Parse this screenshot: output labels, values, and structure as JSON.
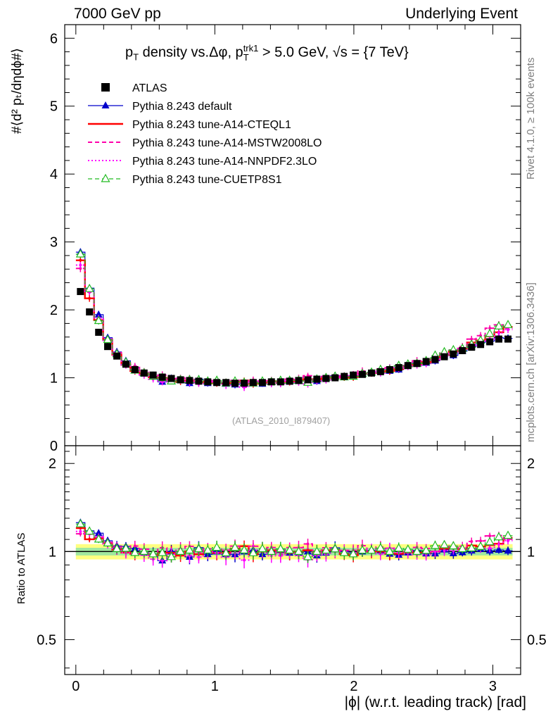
{
  "header": {
    "left": "7000 GeV pp",
    "right": "Underlying Event"
  },
  "side_labels": {
    "rivet": "Rivet 4.1.0, ≥ 100k events",
    "mcplots": "mcplots.cern.ch [arXiv:1306.3436]"
  },
  "watermark": "(ATLAS_2010_I879407)",
  "colors": {
    "atlas": "#000000",
    "default": "#0000cc",
    "a14_cteql1": "#ff0000",
    "a14_mstw": "#ff00aa",
    "a14_nnpdf": "#ff00ff",
    "cuetp8s1": "#22bb22",
    "band_inner": "#a0e8a0",
    "band_outer": "#ffff80"
  },
  "chart_data": {
    "type": "line",
    "title": "p_T density vs.Δφ, p_T^trk1 > 5.0 GeV, √s = {7 TeV}",
    "title_parts": {
      "pre": "p",
      "pre_sub": "T",
      "mid": " density vs.Δφ, p",
      "mid_sup": "trk1",
      "mid_sub": "T",
      "post": " > 5.0 GeV, √s = {7 TeV}"
    },
    "ylabel": "#⟨d² p_T/dηdφ#⟩",
    "ylabel_display": "#⟨d² pₜ/dηdϕ#⟩",
    "ratio_ylabel": "Ratio to ATLAS",
    "xlabel": "|ϕ| (w.r.t. leading track) [rad]",
    "xlim": [
      -0.08,
      3.2
    ],
    "ylim": [
      0,
      6.2
    ],
    "ratio_ylim": [
      0.38,
      2.3
    ],
    "xticks": [
      "0",
      "1",
      "2",
      "3"
    ],
    "yticks": [
      "0",
      "1",
      "2",
      "3",
      "4",
      "5",
      "6"
    ],
    "ratio_yticks": [
      "0.5",
      "1",
      "2"
    ],
    "legend": [
      {
        "key": "atlas",
        "label": "ATLAS",
        "style": "square"
      },
      {
        "key": "default",
        "label": "Pythia 8.243 default",
        "style": "line-triangle"
      },
      {
        "key": "a14_cteql1",
        "label": "Pythia 8.243 tune-A14-CTEQL1",
        "style": "solid"
      },
      {
        "key": "a14_mstw",
        "label": "Pythia 8.243 tune-A14-MSTW2008LO",
        "style": "dashed"
      },
      {
        "key": "a14_nnpdf",
        "label": "Pythia 8.243 tune-A14-NNPDF2.3LO",
        "style": "dotted"
      },
      {
        "key": "cuetp8s1",
        "label": "Pythia 8.243 tune-CUETP8S1",
        "style": "dash-open-triangle"
      }
    ],
    "x": [
      0.033,
      0.098,
      0.164,
      0.229,
      0.295,
      0.36,
      0.425,
      0.491,
      0.556,
      0.622,
      0.687,
      0.753,
      0.818,
      0.884,
      0.949,
      1.014,
      1.08,
      1.145,
      1.211,
      1.276,
      1.342,
      1.407,
      1.473,
      1.538,
      1.603,
      1.669,
      1.734,
      1.8,
      1.865,
      1.931,
      1.996,
      2.061,
      2.127,
      2.192,
      2.258,
      2.323,
      2.389,
      2.454,
      2.52,
      2.585,
      2.651,
      2.716,
      2.781,
      2.847,
      2.912,
      2.978,
      3.043,
      3.109
    ],
    "series": [
      {
        "name": "ATLAS",
        "key": "atlas",
        "values": [
          2.27,
          1.97,
          1.67,
          1.46,
          1.32,
          1.2,
          1.12,
          1.07,
          1.04,
          1.01,
          0.99,
          0.97,
          0.96,
          0.95,
          0.94,
          0.93,
          0.93,
          0.92,
          0.92,
          0.93,
          0.93,
          0.94,
          0.94,
          0.95,
          0.96,
          0.97,
          0.98,
          0.99,
          1.0,
          1.02,
          1.04,
          1.05,
          1.07,
          1.09,
          1.12,
          1.15,
          1.18,
          1.21,
          1.24,
          1.27,
          1.31,
          1.35,
          1.4,
          1.45,
          1.49,
          1.53,
          1.57,
          1.57
        ]
      },
      {
        "name": "Pythia 8.243 default",
        "key": "default",
        "values": [
          2.85,
          2.32,
          1.93,
          1.59,
          1.38,
          1.25,
          1.15,
          1.06,
          1.02,
          0.94,
          0.99,
          0.96,
          0.92,
          0.98,
          0.92,
          0.93,
          0.91,
          0.9,
          0.92,
          0.94,
          0.91,
          0.95,
          0.95,
          0.94,
          0.95,
          0.97,
          0.95,
          0.98,
          1.03,
          1.02,
          1.03,
          1.05,
          1.08,
          1.1,
          1.1,
          1.12,
          1.17,
          1.22,
          1.22,
          1.25,
          1.33,
          1.33,
          1.39,
          1.46,
          1.52,
          1.54,
          1.59,
          1.58
        ]
      },
      {
        "name": "Pythia 8.243 tune-A14-CTEQL1",
        "key": "a14_cteql1",
        "values": [
          2.73,
          2.17,
          1.85,
          1.56,
          1.34,
          1.19,
          1.1,
          1.05,
          1.01,
          1.0,
          0.98,
          0.94,
          0.96,
          0.93,
          0.94,
          0.92,
          0.92,
          0.94,
          0.96,
          0.91,
          0.93,
          0.95,
          0.94,
          0.94,
          0.96,
          0.98,
          0.98,
          1.0,
          1.01,
          1.0,
          1.01,
          1.06,
          1.07,
          1.09,
          1.1,
          1.13,
          1.17,
          1.2,
          1.23,
          1.27,
          1.34,
          1.39,
          1.43,
          1.52,
          1.55,
          1.61,
          1.67,
          1.75
        ]
      },
      {
        "name": "Pythia 8.243 tune-A14-MSTW2008LO",
        "key": "a14_mstw",
        "values": [
          2.61,
          2.26,
          1.87,
          1.57,
          1.37,
          1.22,
          1.17,
          1.09,
          1.01,
          1.04,
          0.95,
          0.99,
          1.0,
          0.94,
          0.96,
          0.95,
          0.94,
          0.96,
          0.92,
          0.97,
          0.95,
          0.97,
          0.92,
          0.98,
          0.99,
          1.03,
          0.96,
          1.02,
          1.0,
          1.03,
          1.05,
          1.1,
          1.07,
          1.13,
          1.15,
          1.16,
          1.18,
          1.25,
          1.27,
          1.27,
          1.36,
          1.41,
          1.46,
          1.57,
          1.62,
          1.73,
          1.78,
          1.73
        ]
      },
      {
        "name": "Pythia 8.243 tune-A14-NNPDF2.3LO",
        "key": "a14_nnpdf",
        "values": [
          2.66,
          2.27,
          1.88,
          1.55,
          1.33,
          1.19,
          1.1,
          1.04,
          0.98,
          0.94,
          0.97,
          0.96,
          0.93,
          0.91,
          0.94,
          0.92,
          0.89,
          0.91,
          0.86,
          0.94,
          0.94,
          0.91,
          0.91,
          0.95,
          0.93,
          0.91,
          0.95,
          0.97,
          1.0,
          1.02,
          1.03,
          1.06,
          1.09,
          1.07,
          1.15,
          1.14,
          1.17,
          1.18,
          1.21,
          1.27,
          1.32,
          1.36,
          1.44,
          1.48,
          1.53,
          1.57,
          1.66,
          1.71
        ]
      },
      {
        "name": "Pythia 8.243 tune-CUETP8S1",
        "key": "cuetp8s1",
        "values": [
          2.82,
          2.31,
          1.84,
          1.56,
          1.35,
          1.23,
          1.11,
          1.07,
          1.02,
          1.0,
          0.95,
          0.97,
          0.97,
          0.97,
          0.95,
          0.96,
          0.92,
          0.95,
          0.93,
          0.92,
          0.95,
          0.94,
          0.96,
          0.96,
          0.96,
          0.93,
          0.98,
          1.0,
          1.02,
          1.01,
          1.02,
          1.06,
          1.08,
          1.12,
          1.12,
          1.18,
          1.2,
          1.21,
          1.25,
          1.33,
          1.38,
          1.41,
          1.43,
          1.49,
          1.55,
          1.65,
          1.76,
          1.78
        ]
      }
    ],
    "ratio_band": {
      "inner": [
        0.97,
        1.03
      ],
      "outer": [
        0.94,
        1.06
      ]
    }
  }
}
